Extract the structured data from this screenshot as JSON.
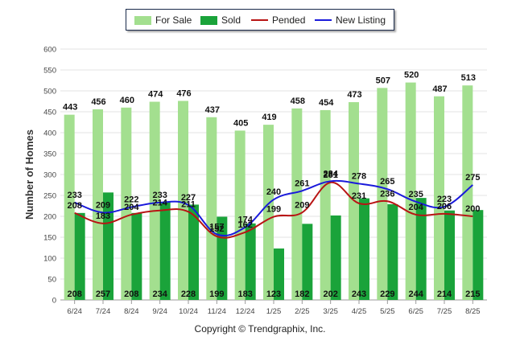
{
  "legend": {
    "for_sale": "For Sale",
    "sold": "Sold",
    "pended": "Pended",
    "new_listing": "New Listing"
  },
  "copyright": "Copyright © Trendgraphix, Inc.",
  "colors": {
    "for_sale": "#a3df8f",
    "sold": "#1aa33a",
    "pended": "#b81414",
    "new_listing": "#1a1adb"
  },
  "chart_data": {
    "type": "bar",
    "categories": [
      "6/24",
      "7/24",
      "8/24",
      "9/24",
      "10/24",
      "11/24",
      "12/24",
      "1/25",
      "2/25",
      "3/25",
      "4/25",
      "5/25",
      "6/25",
      "7/25",
      "8/25"
    ],
    "series": [
      {
        "name": "For Sale",
        "type": "bar",
        "values": [
          443,
          456,
          460,
          474,
          476,
          437,
          405,
          419,
          458,
          454,
          473,
          507,
          520,
          487,
          513
        ]
      },
      {
        "name": "Sold",
        "type": "bar",
        "values": [
          208,
          257,
          208,
          234,
          228,
          199,
          183,
          123,
          182,
          202,
          243,
          229,
          244,
          214,
          215
        ]
      },
      {
        "name": "Pended",
        "type": "line",
        "values": [
          208,
          183,
          204,
          214,
          211,
          152,
          162,
          199,
          209,
          281,
          231,
          236,
          204,
          206,
          200
        ]
      },
      {
        "name": "New Listing",
        "type": "line",
        "values": [
          233,
          209,
          222,
          233,
          227,
          157,
          174,
          240,
          261,
          284,
          278,
          265,
          235,
          223,
          275
        ]
      }
    ],
    "ylabel": "Number of Homes",
    "xlabel": "",
    "ylim": [
      0,
      600
    ],
    "yticks": [
      0,
      50,
      100,
      150,
      200,
      250,
      300,
      350,
      400,
      450,
      500,
      550,
      600
    ],
    "grid": true,
    "legend_position": "top"
  }
}
